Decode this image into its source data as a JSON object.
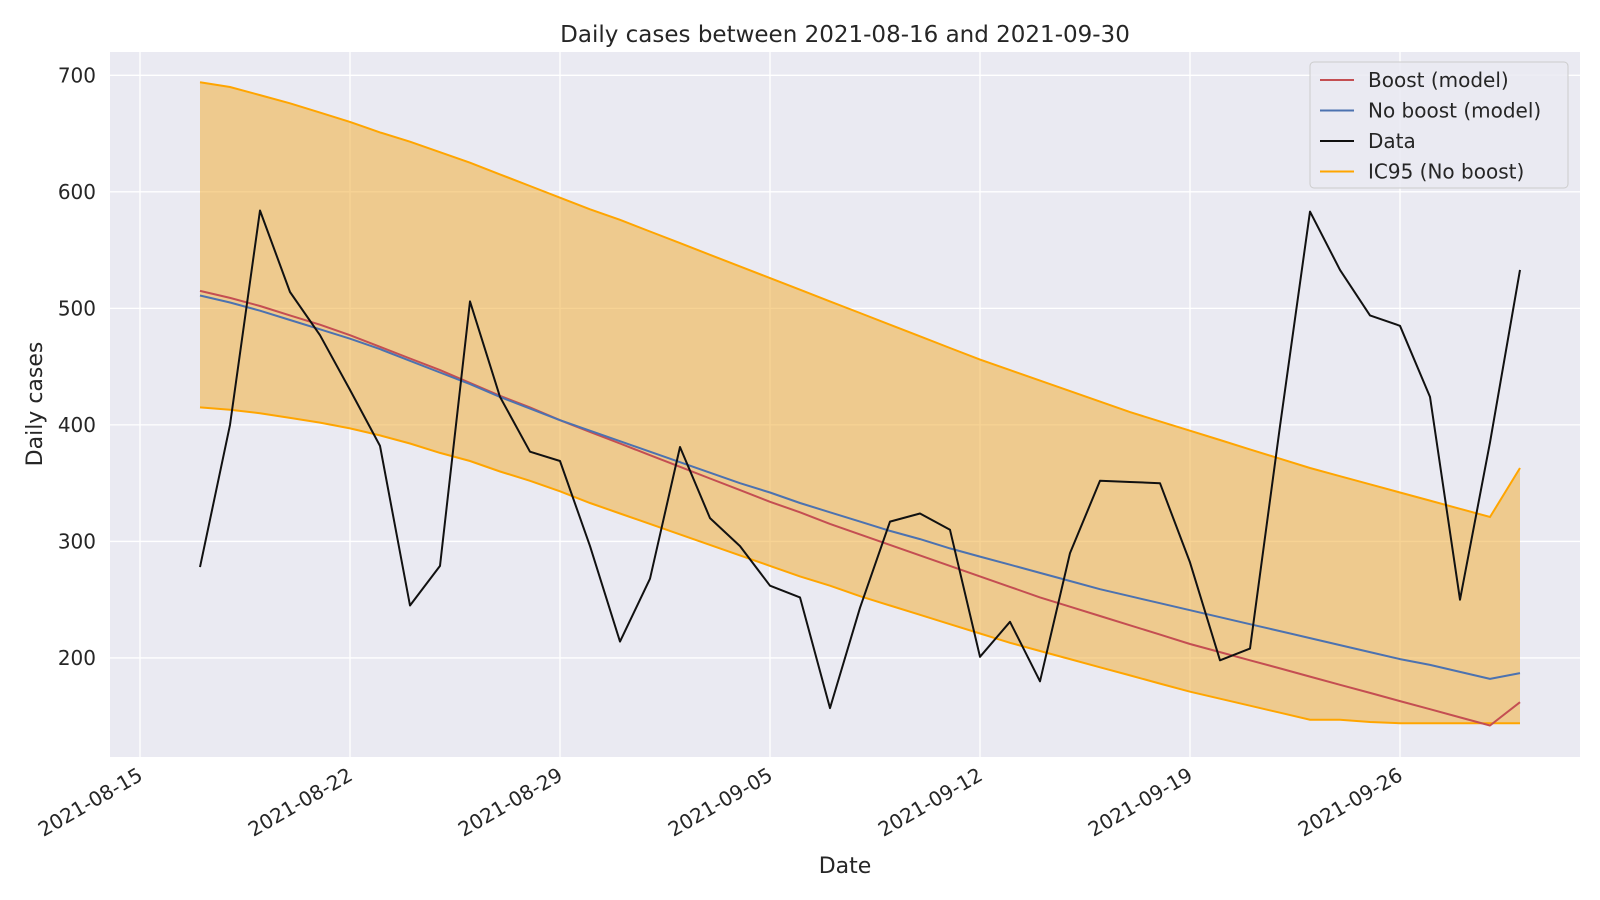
{
  "chart_data": {
    "type": "line",
    "title": "Daily cases between 2021-08-16 and 2021-09-30",
    "xlabel": "Date",
    "ylabel": "Daily cases",
    "grid": true,
    "legend_position": "top-right",
    "x_ticks": [
      "2021-08-15",
      "2021-08-22",
      "2021-08-29",
      "2021-09-05",
      "2021-09-12",
      "2021-09-19",
      "2021-09-26"
    ],
    "y_ticks": [
      200,
      300,
      400,
      500,
      600,
      700
    ],
    "xlim": [
      "2021-08-14",
      "2021-10-02"
    ],
    "ylim": [
      115,
      720
    ],
    "x": [
      "2021-08-17",
      "2021-08-18",
      "2021-08-19",
      "2021-08-20",
      "2021-08-21",
      "2021-08-22",
      "2021-08-23",
      "2021-08-24",
      "2021-08-25",
      "2021-08-26",
      "2021-08-27",
      "2021-08-28",
      "2021-08-29",
      "2021-08-30",
      "2021-08-31",
      "2021-09-01",
      "2021-09-02",
      "2021-09-03",
      "2021-09-04",
      "2021-09-05",
      "2021-09-06",
      "2021-09-07",
      "2021-09-08",
      "2021-09-09",
      "2021-09-10",
      "2021-09-11",
      "2021-09-12",
      "2021-09-13",
      "2021-09-14",
      "2021-09-15",
      "2021-09-16",
      "2021-09-17",
      "2021-09-18",
      "2021-09-19",
      "2021-09-20",
      "2021-09-21",
      "2021-09-22",
      "2021-09-23",
      "2021-09-24",
      "2021-09-25",
      "2021-09-26",
      "2021-09-27",
      "2021-09-28",
      "2021-09-29",
      "2021-09-30"
    ],
    "series": [
      {
        "name": "Boost (model)",
        "color": "#c44e52",
        "values": [
          515,
          509,
          502,
          494,
          486,
          477,
          467,
          457,
          447,
          436,
          425,
          415,
          404,
          394,
          384,
          374,
          364,
          354,
          344,
          334,
          325,
          315,
          306,
          297,
          288,
          279,
          270,
          261,
          252,
          244,
          236,
          228,
          220,
          212,
          205,
          198,
          191,
          184,
          177,
          170,
          163,
          156,
          149,
          142,
          162
        ]
      },
      {
        "name": "No boost (model)",
        "color": "#4c72b0",
        "values": [
          511,
          505,
          498,
          490,
          482,
          474,
          465,
          455,
          445,
          435,
          424,
          414,
          404,
          395,
          386,
          377,
          368,
          359,
          350,
          342,
          333,
          325,
          317,
          309,
          302,
          294,
          287,
          280,
          273,
          266,
          259,
          253,
          247,
          241,
          235,
          229,
          223,
          217,
          211,
          205,
          199,
          194,
          188,
          182,
          187
        ]
      },
      {
        "name": "Data",
        "color": "#111111",
        "values": [
          278,
          400,
          584,
          514,
          477,
          430,
          382,
          245,
          279,
          506,
          424,
          377,
          369,
          296,
          214,
          268,
          381,
          320,
          296,
          262,
          252,
          157,
          243,
          317,
          324,
          310,
          201,
          231,
          180,
          290,
          352,
          351,
          350,
          282,
          198,
          208,
          399,
          583,
          533,
          494,
          485,
          424,
          250,
          385,
          533
        ]
      }
    ],
    "band": {
      "name": "IC95 (No boost)",
      "color": "#ffa500",
      "fill": "rgba(240,175,60,0.55)",
      "upper": [
        694,
        690,
        683,
        676,
        668,
        660,
        651,
        643,
        634,
        625,
        615,
        605,
        595,
        585,
        576,
        566,
        556,
        546,
        536,
        526,
        516,
        506,
        496,
        486,
        476,
        466,
        456,
        447,
        438,
        429,
        420,
        411,
        403,
        395,
        387,
        379,
        371,
        363,
        356,
        349,
        342,
        335,
        328,
        321,
        363
      ],
      "lower": [
        415,
        413,
        410,
        406,
        402,
        397,
        391,
        384,
        376,
        369,
        360,
        352,
        343,
        333,
        324,
        315,
        306,
        297,
        288,
        279,
        270,
        262,
        253,
        245,
        237,
        229,
        221,
        213,
        206,
        199,
        192,
        185,
        178,
        171,
        165,
        159,
        153,
        147,
        147,
        145,
        144,
        144,
        144,
        144,
        144
      ]
    }
  }
}
